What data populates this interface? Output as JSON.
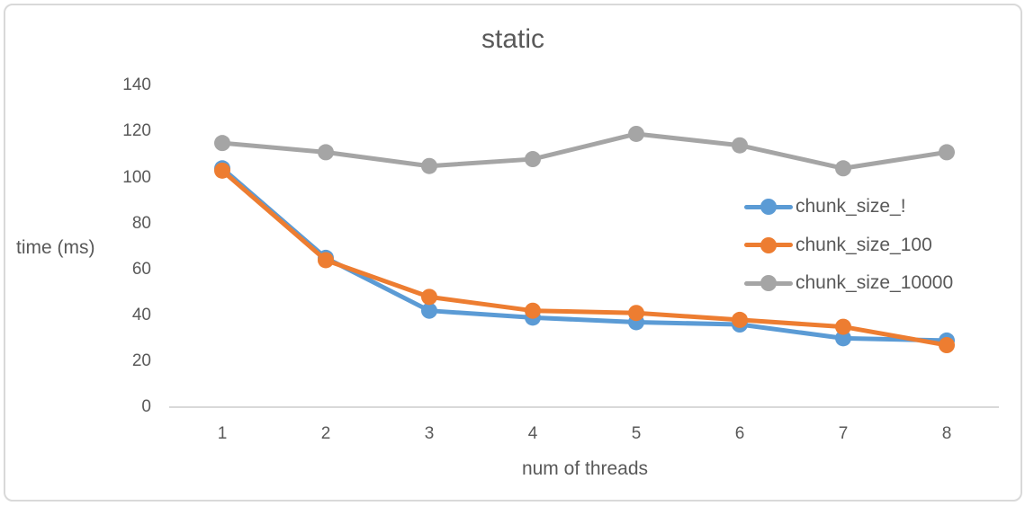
{
  "chart_data": {
    "type": "line",
    "title": "static",
    "xlabel": "num of threads",
    "ylabel": "time (ms)",
    "categories": [
      1,
      2,
      3,
      4,
      5,
      6,
      7,
      8
    ],
    "series": [
      {
        "name": "chunk_size_!",
        "color": "#5B9BD5",
        "values": [
          104,
          65,
          42,
          39,
          37,
          36,
          30,
          29
        ]
      },
      {
        "name": "chunk_size_100",
        "color": "#ED7D31",
        "values": [
          103,
          64,
          48,
          42,
          41,
          38,
          35,
          27
        ]
      },
      {
        "name": "chunk_size_10000",
        "color": "#A5A5A5",
        "values": [
          115,
          111,
          105,
          108,
          119,
          114,
          104,
          111
        ]
      }
    ],
    "y_ticks": [
      0,
      20,
      40,
      60,
      80,
      100,
      120,
      140
    ],
    "ylim": [
      0,
      140
    ],
    "grid": false,
    "legend_position": "right-middle",
    "marker": "circle"
  },
  "colors": {
    "axis_line": "#D9D9D9",
    "frame_border": "#D9D9D9",
    "text": "#595959"
  }
}
